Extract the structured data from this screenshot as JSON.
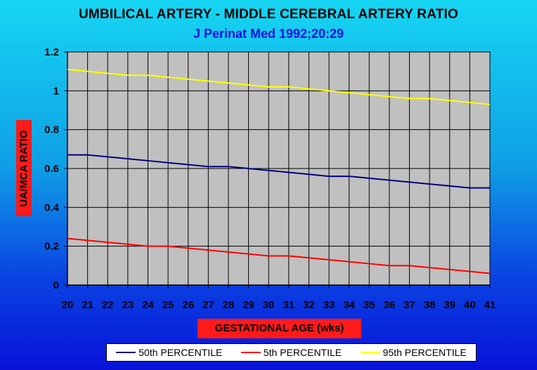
{
  "chart_data": {
    "type": "line",
    "title": "UMBILICAL ARTERY - MIDDLE CEREBRAL ARTERY RATIO",
    "subtitle": "J Perinat Med 1992;20:29",
    "xlabel": "GESTATIONAL AGE (wks)",
    "ylabel": "UA/MCA RATIO",
    "x": [
      20,
      21,
      22,
      23,
      24,
      25,
      26,
      27,
      28,
      29,
      30,
      31,
      32,
      33,
      34,
      35,
      36,
      37,
      38,
      39,
      40,
      41
    ],
    "xlim": [
      20,
      41
    ],
    "ylim": [
      0,
      1.2
    ],
    "yticks": [
      "0",
      "0.2",
      "0.4",
      "0.6",
      "0.8",
      "1",
      "1.2"
    ],
    "grid": true,
    "legend_position": "bottom",
    "plot_background": "#c0c0c0",
    "series": [
      {
        "name": "50th PERCENTILE",
        "color": "#000080",
        "values": [
          0.67,
          0.67,
          0.66,
          0.65,
          0.64,
          0.63,
          0.62,
          0.61,
          0.61,
          0.6,
          0.59,
          0.58,
          0.57,
          0.56,
          0.56,
          0.55,
          0.54,
          0.53,
          0.52,
          0.51,
          0.5,
          0.5
        ]
      },
      {
        "name": "5th PERCENTILE",
        "color": "#ff0000",
        "values": [
          0.24,
          0.23,
          0.22,
          0.21,
          0.2,
          0.2,
          0.19,
          0.18,
          0.17,
          0.16,
          0.15,
          0.15,
          0.14,
          0.13,
          0.12,
          0.11,
          0.1,
          0.1,
          0.09,
          0.08,
          0.07,
          0.06
        ]
      },
      {
        "name": "95th PERCENTILE",
        "color": "#ffff00",
        "values": [
          1.11,
          1.1,
          1.09,
          1.08,
          1.08,
          1.07,
          1.06,
          1.05,
          1.04,
          1.03,
          1.02,
          1.02,
          1.01,
          1.0,
          0.99,
          0.98,
          0.97,
          0.96,
          0.96,
          0.95,
          0.94,
          0.93
        ]
      }
    ]
  }
}
